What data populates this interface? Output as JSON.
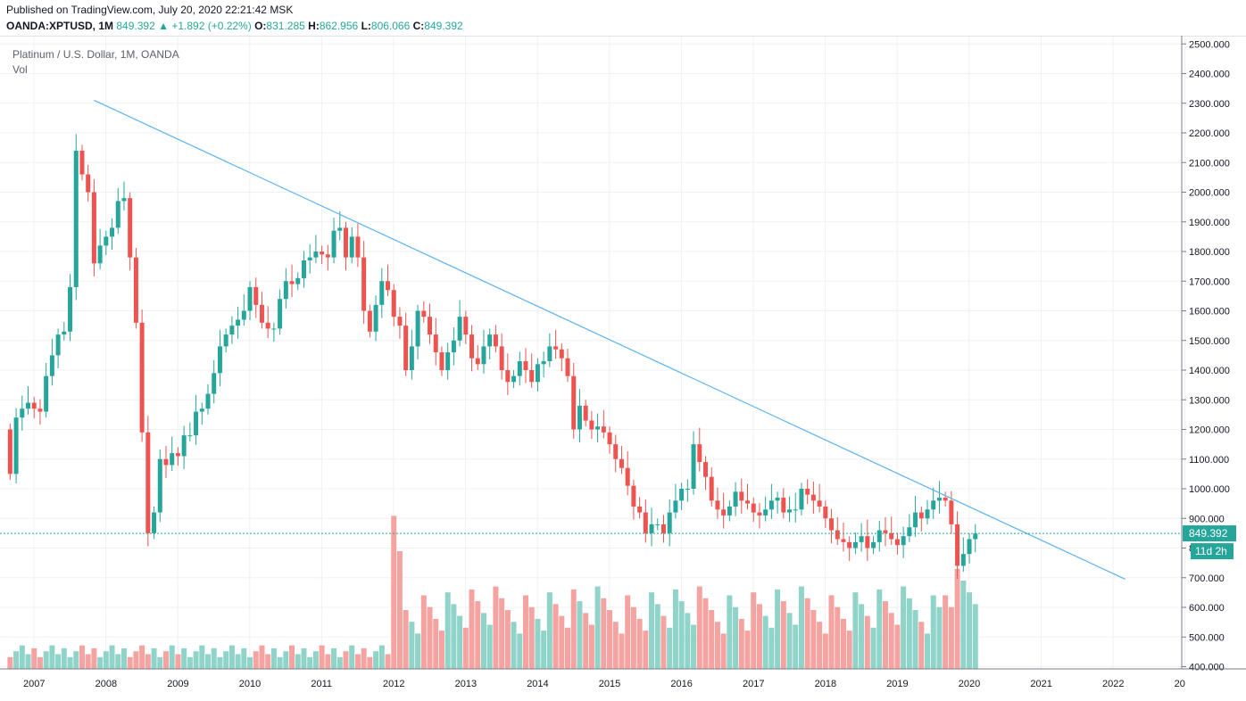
{
  "header": {
    "published": "Published on TradingView.com, July 20, 2020 22:21:42 MSK",
    "symbol": "OANDA:XPTUSD, 1M",
    "last": "849.392",
    "change": "+1.892 (+0.22%)",
    "open_label": "O:",
    "open": "831.285",
    "high_label": "H:",
    "high": "862.956",
    "low_label": "L:",
    "low": "806.066",
    "close_label": "C:",
    "close": "849.392"
  },
  "legend": {
    "title": "Platinum / U.S. Dollar, 1M, OANDA",
    "volume_label": "Vol"
  },
  "badges": {
    "price": "849.392",
    "countdown": "11d 2h"
  },
  "colors": {
    "up": "#26a69a",
    "down": "#ef5350",
    "vol_up": "#8fd3c9",
    "vol_down": "#f5a3a1",
    "trendline": "#5bb3f0",
    "grid": "#eef0f3"
  },
  "chart_data": {
    "type": "candlestick",
    "timeframe": "1M",
    "price_axis": {
      "ticks": [
        400,
        500,
        600,
        700,
        800,
        900,
        1000,
        1100,
        1200,
        1300,
        1400,
        1500,
        1600,
        1700,
        1800,
        1900,
        2000,
        2100,
        2200,
        2300,
        2400,
        2500
      ],
      "tick_labels": [
        "400.000",
        "500.000",
        "600.000",
        "700.000",
        "800.000",
        "900.000",
        "1000.000",
        "1100.000",
        "1200.000",
        "1300.000",
        "1400.000",
        "1500.000",
        "1600.000",
        "1700.000",
        "1800.000",
        "1900.000",
        "2000.000",
        "2100.000",
        "2200.000",
        "2300.000",
        "2400.000",
        "2500.000"
      ],
      "range": [
        400,
        2500
      ]
    },
    "time_axis": {
      "labels": [
        "2007",
        "2008",
        "2009",
        "2010",
        "2011",
        "2012",
        "2013",
        "2014",
        "2015",
        "2016",
        "2017",
        "2018",
        "2019",
        "2020",
        "2021",
        "2022",
        "20"
      ]
    },
    "current_price": 849.392,
    "trendline": {
      "from": [
        "2008-03",
        2310
      ],
      "to": [
        "2022-07",
        695
      ]
    },
    "yearly_closes": [
      [
        1050,
        1240,
        1270,
        1290,
        1270,
        1260,
        1380,
        1450,
        1520,
        1530,
        1680,
        2140
      ],
      [
        2060,
        2000,
        1760,
        1820,
        1850,
        1880,
        1970,
        1980,
        1780,
        1560,
        1190,
        850
      ],
      [
        920,
        1100,
        1080,
        1120,
        1110,
        1180,
        1180,
        1260,
        1270,
        1320,
        1390,
        1480
      ],
      [
        1520,
        1550,
        1570,
        1600,
        1680,
        1620,
        1560,
        1540,
        1540,
        1640,
        1700,
        1690
      ],
      [
        1710,
        1770,
        1780,
        1800,
        1790,
        1780,
        1870,
        1880,
        1780,
        1850,
        1780,
        1600
      ],
      [
        1530,
        1620,
        1700,
        1670,
        1580,
        1550,
        1400,
        1480,
        1600,
        1580,
        1520,
        1460
      ],
      [
        1400,
        1460,
        1500,
        1580,
        1520,
        1440,
        1420,
        1480,
        1520,
        1480,
        1400,
        1360
      ],
      [
        1380,
        1430,
        1400,
        1360,
        1420,
        1430,
        1480,
        1470,
        1440,
        1380,
        1200,
        1280
      ],
      [
        1230,
        1200,
        1210,
        1190,
        1150,
        1100,
        1070,
        1010,
        940,
        920,
        850,
        880
      ],
      [
        880,
        850,
        920,
        960,
        1000,
        1000,
        1150,
        1090,
        1040,
        960,
        930,
        910
      ],
      [
        940,
        990,
        960,
        950,
        920,
        910,
        930,
        960,
        970,
        920,
        930,
        930
      ],
      [
        1000,
        980,
        960,
        940,
        900,
        860,
        830,
        820,
        800,
        820,
        840,
        800
      ],
      [
        820,
        860,
        850,
        830,
        810,
        840,
        870,
        920,
        900,
        930,
        960,
        970
      ],
      [
        960,
        880,
        740,
        780,
        830,
        849
      ]
    ],
    "volume_axis": "Vol"
  }
}
